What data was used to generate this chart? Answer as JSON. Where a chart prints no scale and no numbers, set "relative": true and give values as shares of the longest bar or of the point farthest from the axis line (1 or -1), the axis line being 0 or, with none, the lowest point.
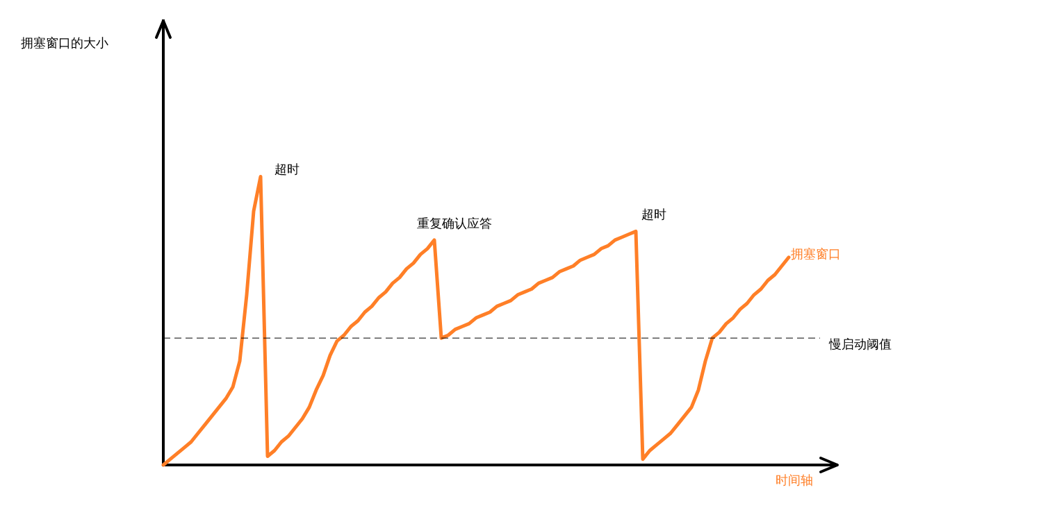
{
  "chart_data": {
    "type": "line",
    "relative": true,
    "xlabel": "时间轴",
    "categories": [
      null,
      null,
      null,
      null,
      null,
      null,
      null,
      null,
      null,
      null,
      null,
      null,
      null,
      null,
      null,
      null,
      null,
      null,
      null,
      null,
      null,
      null,
      null,
      null,
      null,
      null,
      null,
      null,
      null,
      null,
      null,
      null,
      null,
      null,
      null,
      null,
      null,
      null,
      null,
      null,
      null,
      null,
      null,
      null,
      null,
      null,
      null,
      null,
      null,
      null,
      null,
      null,
      null,
      null,
      null,
      null,
      null,
      null,
      null,
      null,
      null,
      null,
      null,
      null,
      null,
      null,
      null,
      null,
      null,
      null,
      null,
      null,
      null,
      null,
      null,
      null,
      null,
      null,
      null,
      null,
      null,
      null,
      null,
      null,
      null,
      null,
      null,
      null,
      null,
      null,
      null,
      null,
      null,
      null,
      null,
      null,
      null,
      null
    ],
    "series": [
      {
        "name": "拥塞窗口",
        "color": "#ff7f27",
        "values": [
          0,
          0.02,
          0.04,
          0.06,
          0.08,
          0.11,
          0.14,
          0.17,
          0.2,
          0.23,
          0.27,
          0.36,
          0.59,
          0.88,
          1,
          0.03,
          0.05,
          0.08,
          0.1,
          0.13,
          0.16,
          0.2,
          0.26,
          0.31,
          0.38,
          0.43,
          0.45,
          0.48,
          0.5,
          0.53,
          0.55,
          0.58,
          0.6,
          0.63,
          0.65,
          0.68,
          0.7,
          0.73,
          0.75,
          0.78,
          0.44,
          0.45,
          0.47,
          0.48,
          0.49,
          0.51,
          0.52,
          0.53,
          0.55,
          0.56,
          0.57,
          0.59,
          0.6,
          0.61,
          0.63,
          0.64,
          0.65,
          0.67,
          0.68,
          0.69,
          0.71,
          0.72,
          0.73,
          0.75,
          0.76,
          0.78,
          0.79,
          0.8,
          0.81,
          0.02,
          0.05,
          0.07,
          0.09,
          0.11,
          0.14,
          0.17,
          0.2,
          0.26,
          0.36,
          0.44,
          0.46,
          0.49,
          0.51,
          0.54,
          0.56,
          0.59,
          0.61,
          0.64,
          0.66,
          0.69,
          0.72,
          null,
          null,
          null,
          null,
          null,
          null,
          null
        ]
      }
    ],
    "ref_lines": [
      {
        "axis": "y",
        "value": 0.44,
        "label": "慢启动阈值",
        "color": "#000000",
        "line_style": "dashed"
      }
    ],
    "annotations": [
      "超时",
      "重复确认应答",
      "超时",
      "拥塞窗口的大小"
    ],
    "marker": "none",
    "line_style": "solid"
  }
}
